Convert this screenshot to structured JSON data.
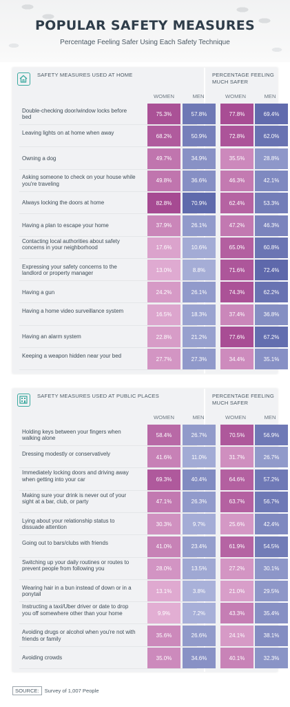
{
  "header": {
    "title": "POPULAR SAFETY MEASURES",
    "subtitle": "Percentage Feeling Safer Using Each Safety Technique"
  },
  "colors": {
    "women_strong": "#a64a92",
    "men_strong": "#5560a6",
    "pale_pink": "#e6b5d8",
    "pale_blue": "#a9b1d9"
  },
  "source": {
    "label": "SOURCE:",
    "text": "Survey of 1,007 People"
  },
  "chart_data": [
    {
      "type": "table",
      "icon": "home-icon",
      "section_label": "SAFETY MEASURES USED AT HOME",
      "right_label": "PERCENTAGE FEELING MUCH SAFER",
      "left_cols": [
        "WOMEN",
        "MEN"
      ],
      "right_cols": [
        "WOMEN",
        "MEN"
      ],
      "rows": [
        {
          "label": "Double-checking door/window locks before bed",
          "used": [
            "75.3%",
            "57.8%"
          ],
          "safer": [
            "77.8%",
            "69.4%"
          ]
        },
        {
          "label": "Leaving lights on at home when away",
          "used": [
            "68.2%",
            "50.9%"
          ],
          "safer": [
            "72.8%",
            "62.0%"
          ]
        },
        {
          "label": "Owning a dog",
          "used": [
            "49.7%",
            "34.9%"
          ],
          "safer": [
            "35.5%",
            "28.8%"
          ]
        },
        {
          "label": "Asking someone to check on your house while you're traveling",
          "used": [
            "49.8%",
            "36.6%"
          ],
          "safer": [
            "46.3%",
            "42.1%"
          ]
        },
        {
          "label": "Always locking the doors at home",
          "used": [
            "82.8%",
            "70.9%"
          ],
          "safer": [
            "62.4%",
            "53.3%"
          ]
        },
        {
          "label": "Having a plan to escape your home",
          "used": [
            "37.9%",
            "26.1%"
          ],
          "safer": [
            "47.2%",
            "46.3%"
          ]
        },
        {
          "label": "Contacting local authorities about safety concerns in your neighborhood",
          "used": [
            "17.6%",
            "10.6%"
          ],
          "safer": [
            "65.0%",
            "60.8%"
          ]
        },
        {
          "label": "Expressing your safety concerns to the landlord or property manager",
          "used": [
            "13.0%",
            "8.8%"
          ],
          "safer": [
            "71.6%",
            "72.4%"
          ]
        },
        {
          "label": "Having a gun",
          "used": [
            "24.2%",
            "26.1%"
          ],
          "safer": [
            "74.3%",
            "62.2%"
          ]
        },
        {
          "label": "Having a home video surveillance system",
          "used": [
            "16.5%",
            "18.3%"
          ],
          "safer": [
            "37.4%",
            "36.8%"
          ]
        },
        {
          "label": "Having an alarm system",
          "used": [
            "22.8%",
            "21.2%"
          ],
          "safer": [
            "77.6%",
            "67.2%"
          ]
        },
        {
          "label": "Keeping a weapon hidden near your bed",
          "used": [
            "27.7%",
            "27.3%"
          ],
          "safer": [
            "34.4%",
            "35.1%"
          ]
        }
      ]
    },
    {
      "type": "table",
      "icon": "building-icon",
      "section_label": "SAFETY MEASURES USED AT PUBLIC PLACES",
      "right_label": "PERCENTAGE FEELING MUCH SAFER",
      "left_cols": [
        "WOMEN",
        "MEN"
      ],
      "right_cols": [
        "WOMEN",
        "MEN"
      ],
      "rows": [
        {
          "label": "Holding keys between your fingers when walking alone",
          "used": [
            "58.4%",
            "26.7%"
          ],
          "safer": [
            "70.5%",
            "56.9%"
          ]
        },
        {
          "label": "Dressing modestly or conservatively",
          "used": [
            "41.6%",
            "11.0%"
          ],
          "safer": [
            "31.7%",
            "26.7%"
          ]
        },
        {
          "label": "Immediately locking doors and driving away when getting into your car",
          "used": [
            "69.3%",
            "40.4%"
          ],
          "safer": [
            "64.6%",
            "57.2%"
          ]
        },
        {
          "label": "Making sure your drink is never out of your sight at a bar, club, or party",
          "used": [
            "47.1%",
            "26.3%"
          ],
          "safer": [
            "63.7%",
            "56.7%"
          ]
        },
        {
          "label": "Lying about your relationship status to dissuade attention",
          "used": [
            "30.3%",
            "9.7%"
          ],
          "safer": [
            "25.6%",
            "42.4%"
          ]
        },
        {
          "label": "Going out to bars/clubs with friends",
          "used": [
            "41.0%",
            "23.4%"
          ],
          "safer": [
            "61.9%",
            "54.5%"
          ]
        },
        {
          "label": "Switching up your daily routines or routes to prevent people from following you",
          "used": [
            "28.0%",
            "13.5%"
          ],
          "safer": [
            "27.2%",
            "30.1%"
          ]
        },
        {
          "label": "Wearing hair in a bun instead of down or in a ponytail",
          "used": [
            "13.1%",
            "3.8%"
          ],
          "safer": [
            "21.0%",
            "29.5%"
          ]
        },
        {
          "label": "Instructing a taxi/Uber driver or date to drop you off somewhere other than your home",
          "used": [
            "9.9%",
            "7.2%"
          ],
          "safer": [
            "43.3%",
            "35.4%"
          ]
        },
        {
          "label": "Avoiding drugs or alcohol when you're not with friends or family",
          "used": [
            "35.6%",
            "26.6%"
          ],
          "safer": [
            "24.1%",
            "38.1%"
          ]
        },
        {
          "label": "Avoiding crowds",
          "used": [
            "35.0%",
            "34.6%"
          ],
          "safer": [
            "40.1%",
            "32.3%"
          ]
        }
      ]
    }
  ]
}
